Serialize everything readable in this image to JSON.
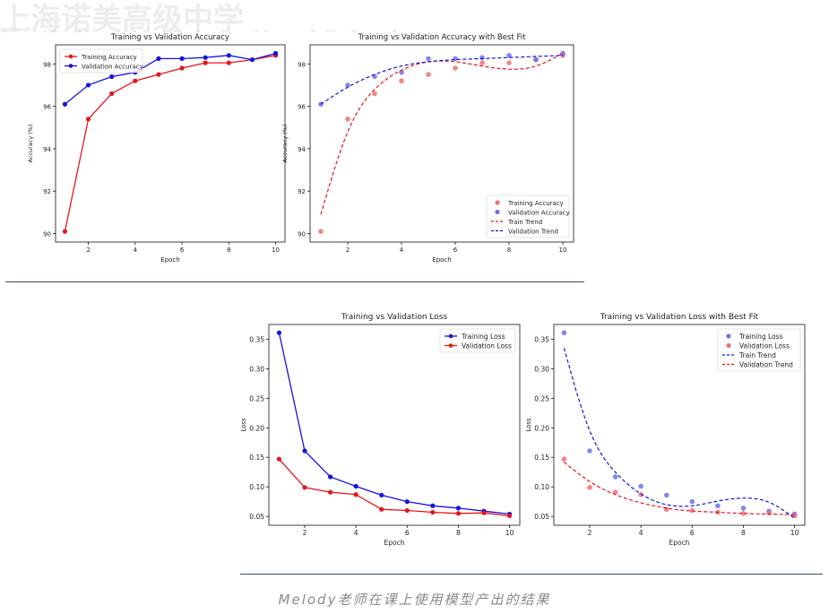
{
  "chart_data": [
    {
      "type": "line",
      "title": "Training vs Validation Accuracy",
      "xlabel": "Epoch",
      "ylabel": "Accuracy (%)",
      "x": [
        1,
        2,
        3,
        4,
        5,
        6,
        7,
        8,
        9,
        10
      ],
      "xticks": [
        2,
        4,
        6,
        8,
        10
      ],
      "yticks": [
        90,
        92,
        94,
        96,
        98
      ],
      "xlim": [
        0.6,
        10.4
      ],
      "ylim": [
        89.6,
        98.9
      ],
      "grid": false,
      "legend": "upper left",
      "series": [
        {
          "name": "Training Accuracy",
          "color": "#e8141b",
          "values": [
            90.1,
            95.4,
            96.6,
            97.2,
            97.5,
            97.8,
            98.05,
            98.05,
            98.2,
            98.4
          ]
        },
        {
          "name": "Validation Accuracy",
          "color": "#1414e0",
          "values": [
            96.1,
            97.0,
            97.4,
            97.6,
            98.25,
            98.25,
            98.3,
            98.4,
            98.2,
            98.5
          ]
        }
      ]
    },
    {
      "type": "scatter",
      "title": "Training vs Validation Accuracy with Best Fit",
      "xlabel": "Epoch",
      "ylabel": "Accuracy (%)",
      "x": [
        1,
        2,
        3,
        4,
        5,
        6,
        7,
        8,
        9,
        10
      ],
      "xticks": [
        2,
        4,
        6,
        8,
        10
      ],
      "yticks": [
        90,
        92,
        94,
        96,
        98
      ],
      "xlim": [
        0.6,
        10.4
      ],
      "ylim": [
        89.6,
        98.9
      ],
      "grid": false,
      "legend": "lower right",
      "series": [
        {
          "name": "Training Accuracy",
          "color": "#f07070",
          "marker": "dot",
          "values": [
            90.1,
            95.4,
            96.6,
            97.2,
            97.5,
            97.8,
            98.05,
            98.05,
            98.2,
            98.4
          ]
        },
        {
          "name": "Validation Accuracy",
          "color": "#7070f0",
          "marker": "dot",
          "values": [
            96.1,
            97.0,
            97.4,
            97.6,
            98.25,
            98.25,
            98.3,
            98.4,
            98.2,
            98.5
          ]
        },
        {
          "name": "Train Trend",
          "color": "#e8141b",
          "marker": "dashed",
          "values": [
            90.9,
            94.8,
            96.8,
            97.7,
            98.1,
            98.1,
            97.9,
            97.75,
            97.9,
            98.5
          ]
        },
        {
          "name": "Validation Trend",
          "color": "#1414e0",
          "marker": "dashed",
          "values": [
            96.1,
            96.9,
            97.5,
            97.9,
            98.1,
            98.2,
            98.25,
            98.3,
            98.35,
            98.4
          ]
        }
      ]
    },
    {
      "type": "line",
      "title": "Training vs Validation Loss",
      "xlabel": "Epoch",
      "ylabel": "Loss",
      "x": [
        1,
        2,
        3,
        4,
        5,
        6,
        7,
        8,
        9,
        10
      ],
      "xticks": [
        2,
        4,
        6,
        8,
        10
      ],
      "yticks": [
        0.05,
        0.1,
        0.15,
        0.2,
        0.25,
        0.3,
        0.35
      ],
      "ytick_labels": [
        "0.05",
        "0.10",
        "0.15",
        "0.20",
        "0.25",
        "0.30",
        "0.35"
      ],
      "xlim": [
        0.6,
        10.4
      ],
      "ylim": [
        0.035,
        0.375
      ],
      "grid": false,
      "legend": "upper right",
      "series": [
        {
          "name": "Training Loss",
          "color": "#1414e0",
          "values": [
            0.361,
            0.161,
            0.117,
            0.101,
            0.086,
            0.075,
            0.068,
            0.064,
            0.059,
            0.054
          ]
        },
        {
          "name": "Validation Loss",
          "color": "#e8141b",
          "values": [
            0.147,
            0.099,
            0.091,
            0.087,
            0.062,
            0.06,
            0.057,
            0.055,
            0.056,
            0.051
          ]
        }
      ]
    },
    {
      "type": "scatter",
      "title": "Training vs Validation Loss with Best Fit",
      "xlabel": "Epoch",
      "ylabel": "Loss",
      "x": [
        1,
        2,
        3,
        4,
        5,
        6,
        7,
        8,
        9,
        10
      ],
      "xticks": [
        2,
        4,
        6,
        8,
        10
      ],
      "yticks": [
        0.05,
        0.1,
        0.15,
        0.2,
        0.25,
        0.3,
        0.35
      ],
      "ytick_labels": [
        "0.05",
        "0.10",
        "0.15",
        "0.20",
        "0.25",
        "0.30",
        "0.35"
      ],
      "xlim": [
        0.6,
        10.4
      ],
      "ylim": [
        0.035,
        0.375
      ],
      "grid": false,
      "legend": "upper right",
      "series": [
        {
          "name": "Training Loss",
          "color": "#7070f0",
          "marker": "dot",
          "values": [
            0.361,
            0.161,
            0.117,
            0.101,
            0.086,
            0.075,
            0.068,
            0.064,
            0.059,
            0.054
          ]
        },
        {
          "name": "Validation Loss",
          "color": "#f07070",
          "marker": "dot",
          "values": [
            0.147,
            0.099,
            0.091,
            0.087,
            0.062,
            0.06,
            0.057,
            0.055,
            0.056,
            0.051
          ]
        },
        {
          "name": "Train Trend",
          "color": "#1414e0",
          "marker": "dashed",
          "values": [
            0.335,
            0.195,
            0.125,
            0.088,
            0.07,
            0.068,
            0.076,
            0.081,
            0.074,
            0.047
          ]
        },
        {
          "name": "Validation Trend",
          "color": "#e8141b",
          "marker": "dashed",
          "values": [
            0.142,
            0.109,
            0.087,
            0.073,
            0.064,
            0.059,
            0.057,
            0.055,
            0.054,
            0.053
          ]
        }
      ]
    }
  ],
  "watermark": {
    "line1": "上海诺美高级中学",
    "line2": "North America International School"
  },
  "caption": "Melody老师在课上使用模型产出的结果"
}
